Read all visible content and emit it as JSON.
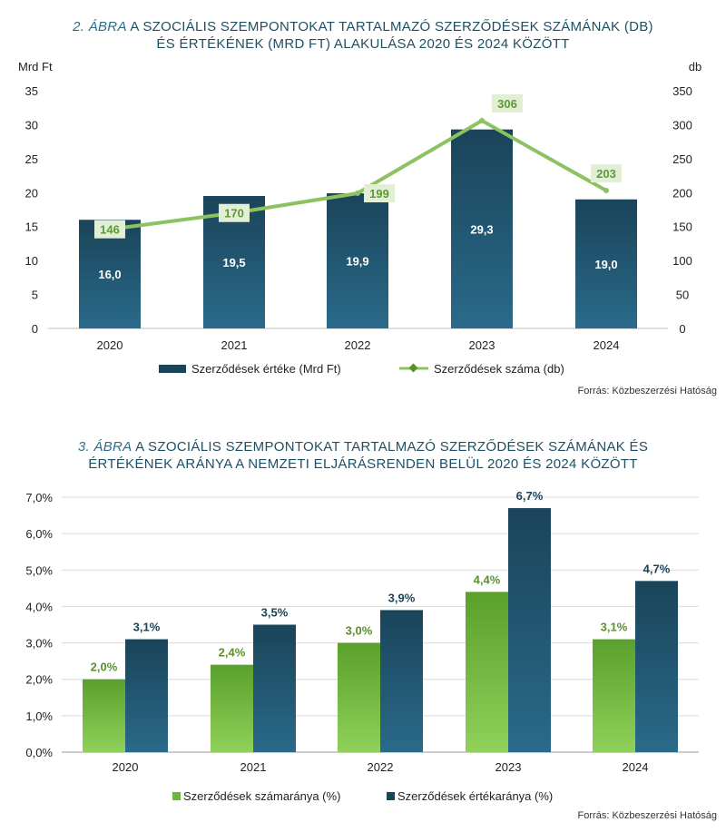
{
  "chart1": {
    "title_prefix": "2. ÁBRA",
    "title_line1_rest": " A SZOCIÁLIS SZEMPONTOKAT TARTALMAZÓ SZERZŐDÉSEK SZÁMÁNAK (DB)",
    "title_line2": "ÉS ÉRTÉKÉNEK (MRD FT) ALAKULÁSA 2020 ÉS 2024 KÖZÖTT",
    "left_axis_unit": "Mrd Ft",
    "right_axis_unit": "db",
    "source": "Forrás: Közbeszerzési Hatóság"
  },
  "chart2": {
    "title_prefix": "3. ÁBRA",
    "title_line1_rest": " A SZOCIÁLIS SZEMPONTOKAT TARTALMAZÓ SZERZŐDÉSEK SZÁMÁNAK ÉS",
    "title_line2": "ÉRTÉKÉNEK ARÁNYA A NEMZETI ELJÁRÁSRENDEN BELÜL 2020 ÉS 2024 KÖZÖTT",
    "source": "Forrás: Közbeszerzési Hatóság"
  },
  "colors": {
    "bar_dark": "#1a4459",
    "bar_light": "#2a6a8a",
    "line_green": "#8cc260",
    "label_bg": "#e3efd5",
    "green_dark": "#5aa02c",
    "green_light": "#8fd15a",
    "grid": "#d9d9d9"
  },
  "chart_data": [
    {
      "type": "bar",
      "categories": [
        "2020",
        "2021",
        "2022",
        "2023",
        "2024"
      ],
      "series": [
        {
          "name": "Szerződések értéke (Mrd Ft)",
          "type": "bar",
          "axis": "left",
          "values": [
            16.0,
            19.5,
            19.9,
            29.3,
            19.0
          ],
          "labels": [
            "16,0",
            "19,5",
            "19,9",
            "29,3",
            "19,0"
          ]
        },
        {
          "name": "Szerződések száma (db)",
          "type": "line",
          "axis": "right",
          "values": [
            146,
            170,
            199,
            306,
            203
          ],
          "labels": [
            "146",
            "170",
            "199",
            "306",
            "203"
          ]
        }
      ],
      "ylim_left": [
        0,
        35
      ],
      "yticks_left": [
        "0",
        "5",
        "10",
        "15",
        "20",
        "25",
        "30",
        "35"
      ],
      "ylim_right": [
        0,
        350
      ],
      "yticks_right": [
        "0",
        "50",
        "100",
        "150",
        "200",
        "250",
        "300",
        "350"
      ],
      "grid": false,
      "legend": "bottom"
    },
    {
      "type": "bar",
      "categories": [
        "2020",
        "2021",
        "2022",
        "2023",
        "2024"
      ],
      "series": [
        {
          "name": "Szerződések számaránya (%)",
          "values": [
            2.0,
            2.4,
            3.0,
            4.4,
            3.1
          ],
          "labels": [
            "2,0%",
            "2,4%",
            "3,0%",
            "4,4%",
            "3,1%"
          ]
        },
        {
          "name": "Szerződések értékaránya (%)",
          "values": [
            3.1,
            3.5,
            3.9,
            6.7,
            4.7
          ],
          "labels": [
            "3,1%",
            "3,5%",
            "3,9%",
            "6,7%",
            "4,7%"
          ]
        }
      ],
      "ylim": [
        0,
        7
      ],
      "yticks": [
        "0,0%",
        "1,0%",
        "2,0%",
        "3,0%",
        "4,0%",
        "5,0%",
        "6,0%",
        "7,0%"
      ],
      "grid": true,
      "legend": "bottom"
    }
  ]
}
